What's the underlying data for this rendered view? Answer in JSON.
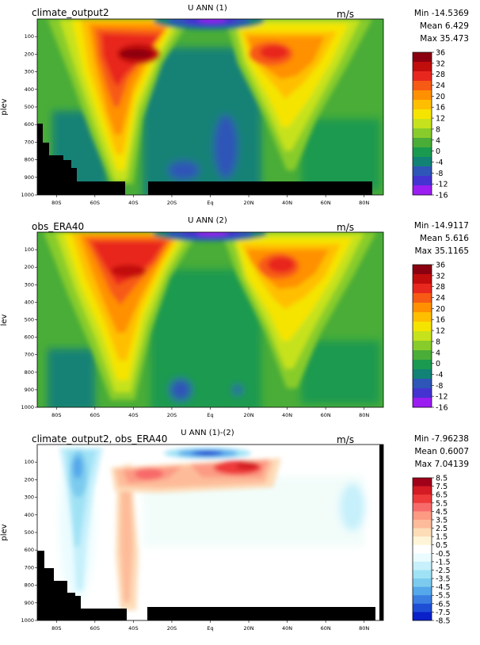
{
  "chart_data": [
    {
      "type": "heatmap",
      "title_left": "climate_output2",
      "title_center": "U ANN (1)",
      "units": "m/s",
      "stats": {
        "min": "Min -14.5369",
        "mean": "Mean 6.429",
        "max": "Max 35.473"
      },
      "ylabel": "plev",
      "x_ticks": [
        "80S",
        "60S",
        "40S",
        "20S",
        "Eq",
        "20N",
        "40N",
        "60N",
        "80N"
      ],
      "x_tick_values": [
        -80,
        -60,
        -40,
        -20,
        0,
        20,
        40,
        60,
        80
      ],
      "y_ticks": [
        "100",
        "200",
        "300",
        "400",
        "500",
        "600",
        "700",
        "800",
        "900",
        "1000"
      ],
      "y_tick_values": [
        100,
        200,
        300,
        400,
        500,
        600,
        700,
        800,
        900,
        1000
      ],
      "xlim": [
        -90,
        90
      ],
      "ylim": [
        0,
        1000
      ],
      "colorbar_labels": [
        "36",
        "32",
        "28",
        "24",
        "20",
        "16",
        "12",
        "8",
        "4",
        "0",
        "-4",
        "-8",
        "-12",
        "-16"
      ],
      "colorbar_colors": [
        "#8b0010",
        "#c20d0d",
        "#e8281e",
        "#f75a14",
        "#ff9000",
        "#ffbf00",
        "#f5e400",
        "#c6e21c",
        "#88cc2c",
        "#4aad38",
        "#1a9a50",
        "#128276",
        "#2e55b8",
        "#4433d0",
        "#9b1df2"
      ],
      "jets": [
        {
          "lat": -42,
          "p": 185,
          "value": 35.5
        },
        {
          "lat": 35,
          "p": 200,
          "value": 25
        }
      ]
    },
    {
      "type": "heatmap",
      "title_left": "obs_ERA40",
      "title_center": "U ANN (2)",
      "units": "m/s",
      "stats": {
        "min": "Min -14.9117",
        "mean": "Mean 5.616",
        "max": "Max 35.1165"
      },
      "ylabel": "lev",
      "x_ticks": [
        "80S",
        "60S",
        "40S",
        "20S",
        "Eq",
        "20N",
        "40N",
        "60N",
        "80N"
      ],
      "x_tick_values": [
        -80,
        -60,
        -40,
        -20,
        0,
        20,
        40,
        60,
        80
      ],
      "y_ticks": [
        "100",
        "200",
        "300",
        "400",
        "500",
        "600",
        "700",
        "800",
        "900",
        "1000"
      ],
      "y_tick_values": [
        100,
        200,
        300,
        400,
        500,
        600,
        700,
        800,
        900,
        1000
      ],
      "xlim": [
        -90,
        90
      ],
      "ylim": [
        0,
        1000
      ],
      "colorbar_labels": [
        "36",
        "32",
        "28",
        "24",
        "20",
        "16",
        "12",
        "8",
        "4",
        "0",
        "-4",
        "-8",
        "-12",
        "-16"
      ],
      "colorbar_colors": [
        "#8b0010",
        "#c20d0d",
        "#e8281e",
        "#f75a14",
        "#ff9000",
        "#ffbf00",
        "#f5e400",
        "#c6e21c",
        "#88cc2c",
        "#4aad38",
        "#1a9a50",
        "#128276",
        "#2e55b8",
        "#4433d0",
        "#9b1df2"
      ],
      "jets": [
        {
          "lat": -45,
          "p": 180,
          "value": 35
        },
        {
          "lat": 33,
          "p": 200,
          "value": 28
        }
      ]
    },
    {
      "type": "heatmap",
      "title_left": "climate_output2, obs_ERA40",
      "title_center": "U ANN (1)-(2)",
      "units": "m/s",
      "stats": {
        "min": "Min -7.96238",
        "mean": "Mean 0.6007",
        "max": "Max 7.04139"
      },
      "ylabel": "plev",
      "x_ticks": [
        "80S",
        "60S",
        "40S",
        "20S",
        "Eq",
        "20N",
        "40N",
        "60N",
        "80N"
      ],
      "x_tick_values": [
        -80,
        -60,
        -40,
        -20,
        0,
        20,
        40,
        60,
        80
      ],
      "y_ticks": [
        "100",
        "200",
        "300",
        "400",
        "500",
        "600",
        "700",
        "800",
        "900",
        "1000"
      ],
      "y_tick_values": [
        100,
        200,
        300,
        400,
        500,
        600,
        700,
        800,
        900,
        1000
      ],
      "xlim": [
        -90,
        90
      ],
      "ylim": [
        0,
        1000
      ],
      "colorbar_labels": [
        "8.5",
        "7.5",
        "6.5",
        "5.5",
        "4.5",
        "3.5",
        "2.5",
        "1.5",
        "0.5",
        "-0.5",
        "-1.5",
        "-2.5",
        "-3.5",
        "-4.5",
        "-5.5",
        "-6.5",
        "-7.5",
        "-8.5"
      ],
      "colorbar_colors": [
        "#a0001a",
        "#d41a22",
        "#ee3a3a",
        "#f86b6b",
        "#fc9a84",
        "#fdbb9a",
        "#fddcb8",
        "#fff4d8",
        "#ffffff",
        "#eafcff",
        "#c6f0fb",
        "#a0e2f5",
        "#7ccbef",
        "#55a8ea",
        "#3a7ee2",
        "#1e4ed6",
        "#0a20c8"
      ],
      "anomalies": [
        {
          "lat": -10,
          "p": 35,
          "value": -7.96
        },
        {
          "lat": -35,
          "p": 180,
          "value": 5.5
        },
        {
          "lat": 25,
          "p": 170,
          "value": 7.0
        },
        {
          "lat": -60,
          "p": 250,
          "value": -4.5
        }
      ]
    }
  ]
}
